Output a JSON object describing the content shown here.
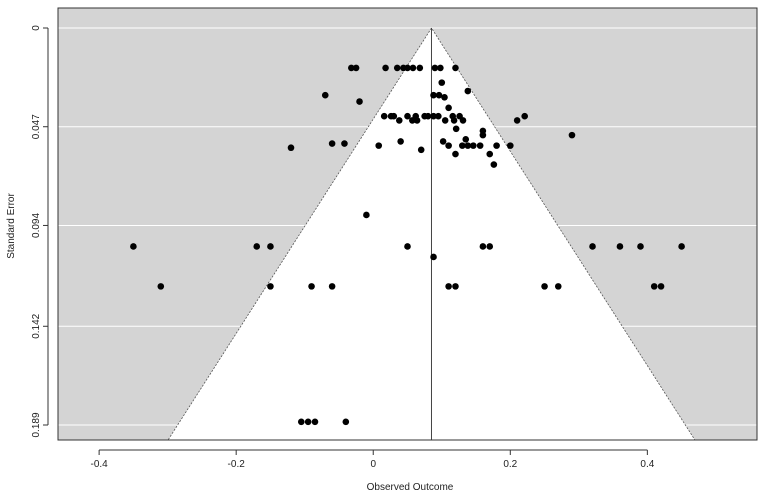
{
  "chart_data": {
    "type": "scatter",
    "subtype": "funnel",
    "xlabel": "Observed Outcome",
    "ylabel": "Standard Error",
    "xlim": [
      -0.46,
      0.56
    ],
    "ylim": [
      0.1885,
      0
    ],
    "y_inverted": true,
    "x_ticks": [
      "-0.4",
      "-0.2",
      "0",
      "0.2",
      "0.4"
    ],
    "x_tick_values": [
      -0.4,
      -0.2,
      0,
      0.2,
      0.4
    ],
    "y_ticks": [
      "0",
      "0.047",
      "0.094",
      "0.142",
      "0.189"
    ],
    "y_tick_values": [
      0,
      0.047,
      0.094,
      0.142,
      0.189
    ],
    "center_estimate": 0.085,
    "funnel_z": 1.96,
    "background_color": "#d4d4d4",
    "funnel_color": "#ffffff",
    "point_color": "#000000",
    "grid": true,
    "points": [
      {
        "x": -0.025,
        "y": 0.019
      },
      {
        "x": -0.032,
        "y": 0.019
      },
      {
        "x": 0.018,
        "y": 0.019
      },
      {
        "x": 0.035,
        "y": 0.019
      },
      {
        "x": 0.044,
        "y": 0.019
      },
      {
        "x": 0.05,
        "y": 0.019
      },
      {
        "x": 0.058,
        "y": 0.019
      },
      {
        "x": 0.068,
        "y": 0.019
      },
      {
        "x": 0.09,
        "y": 0.019
      },
      {
        "x": 0.098,
        "y": 0.019
      },
      {
        "x": 0.12,
        "y": 0.019
      },
      {
        "x": 0.1,
        "y": 0.026
      },
      {
        "x": 0.138,
        "y": 0.03
      },
      {
        "x": -0.07,
        "y": 0.032
      },
      {
        "x": 0.088,
        "y": 0.032
      },
      {
        "x": 0.096,
        "y": 0.032
      },
      {
        "x": 0.104,
        "y": 0.033
      },
      {
        "x": -0.02,
        "y": 0.035
      },
      {
        "x": 0.11,
        "y": 0.038
      },
      {
        "x": 0.016,
        "y": 0.042
      },
      {
        "x": 0.026,
        "y": 0.042
      },
      {
        "x": 0.03,
        "y": 0.042
      },
      {
        "x": 0.05,
        "y": 0.042
      },
      {
        "x": 0.062,
        "y": 0.042
      },
      {
        "x": 0.075,
        "y": 0.042
      },
      {
        "x": 0.08,
        "y": 0.042
      },
      {
        "x": 0.088,
        "y": 0.042
      },
      {
        "x": 0.095,
        "y": 0.042
      },
      {
        "x": 0.116,
        "y": 0.042
      },
      {
        "x": 0.126,
        "y": 0.042
      },
      {
        "x": 0.221,
        "y": 0.042
      },
      {
        "x": 0.038,
        "y": 0.044
      },
      {
        "x": 0.057,
        "y": 0.044
      },
      {
        "x": 0.064,
        "y": 0.044
      },
      {
        "x": 0.105,
        "y": 0.044
      },
      {
        "x": 0.118,
        "y": 0.044
      },
      {
        "x": 0.131,
        "y": 0.044
      },
      {
        "x": 0.21,
        "y": 0.044
      },
      {
        "x": 0.121,
        "y": 0.048
      },
      {
        "x": 0.16,
        "y": 0.049
      },
      {
        "x": 0.29,
        "y": 0.051
      },
      {
        "x": 0.16,
        "y": 0.051
      },
      {
        "x": 0.04,
        "y": 0.054
      },
      {
        "x": 0.102,
        "y": 0.054
      },
      {
        "x": 0.135,
        "y": 0.053
      },
      {
        "x": -0.06,
        "y": 0.055
      },
      {
        "x": -0.042,
        "y": 0.055
      },
      {
        "x": 0.008,
        "y": 0.056
      },
      {
        "x": 0.11,
        "y": 0.056
      },
      {
        "x": 0.13,
        "y": 0.056
      },
      {
        "x": 0.138,
        "y": 0.056
      },
      {
        "x": 0.146,
        "y": 0.056
      },
      {
        "x": 0.156,
        "y": 0.056
      },
      {
        "x": 0.18,
        "y": 0.056
      },
      {
        "x": 0.2,
        "y": 0.056
      },
      {
        "x": -0.12,
        "y": 0.057
      },
      {
        "x": 0.07,
        "y": 0.058
      },
      {
        "x": 0.12,
        "y": 0.06
      },
      {
        "x": 0.17,
        "y": 0.06
      },
      {
        "x": 0.176,
        "y": 0.065
      },
      {
        "x": -0.01,
        "y": 0.089
      },
      {
        "x": -0.35,
        "y": 0.104
      },
      {
        "x": -0.17,
        "y": 0.104
      },
      {
        "x": -0.15,
        "y": 0.104
      },
      {
        "x": 0.05,
        "y": 0.104
      },
      {
        "x": 0.16,
        "y": 0.104
      },
      {
        "x": 0.17,
        "y": 0.104
      },
      {
        "x": 0.32,
        "y": 0.104
      },
      {
        "x": 0.36,
        "y": 0.104
      },
      {
        "x": 0.39,
        "y": 0.104
      },
      {
        "x": 0.45,
        "y": 0.104
      },
      {
        "x": 0.088,
        "y": 0.109
      },
      {
        "x": -0.31,
        "y": 0.123
      },
      {
        "x": -0.15,
        "y": 0.123
      },
      {
        "x": -0.09,
        "y": 0.123
      },
      {
        "x": -0.06,
        "y": 0.123
      },
      {
        "x": 0.11,
        "y": 0.123
      },
      {
        "x": 0.12,
        "y": 0.123
      },
      {
        "x": 0.25,
        "y": 0.123
      },
      {
        "x": 0.27,
        "y": 0.123
      },
      {
        "x": 0.41,
        "y": 0.123
      },
      {
        "x": 0.42,
        "y": 0.123
      },
      {
        "x": -0.105,
        "y": 0.1875
      },
      {
        "x": -0.095,
        "y": 0.1875
      },
      {
        "x": -0.085,
        "y": 0.1875
      },
      {
        "x": -0.04,
        "y": 0.1875
      }
    ]
  }
}
